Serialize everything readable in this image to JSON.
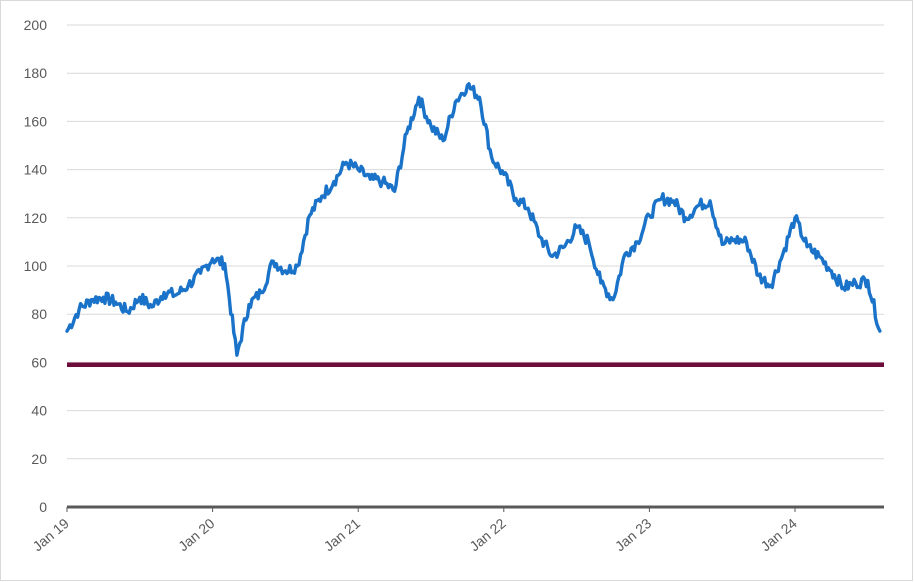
{
  "chart_data": {
    "type": "line",
    "title": "",
    "xlabel": "",
    "ylabel": "",
    "ylim": [
      0,
      200
    ],
    "yticks": [
      0,
      20,
      40,
      60,
      80,
      100,
      120,
      140,
      160,
      180,
      200
    ],
    "ytick_labels": [
      "0",
      "20",
      "40",
      "60",
      "80",
      "100",
      "120",
      "140",
      "160",
      "180",
      "200"
    ],
    "xlim": [
      "2019-01",
      "2024-08"
    ],
    "xticks": [
      "2019-01",
      "2020-01",
      "2021-01",
      "2022-01",
      "2023-01",
      "2024-01"
    ],
    "xtick_labels": [
      "Jan 19",
      "Jan 20",
      "Jan 21",
      "Jan 22",
      "Jan 23",
      "Jan 24"
    ],
    "grid": true,
    "legend": "none",
    "series": [
      {
        "color": "#1a73c8",
        "x": [
          "2019-01",
          "2019-02",
          "2019-03",
          "2019-04",
          "2019-05",
          "2019-06",
          "2019-07",
          "2019-08",
          "2019-09",
          "2019-10",
          "2019-11",
          "2019-12",
          "2020-01",
          "2020-02",
          "2020-03",
          "2020-04",
          "2020-05",
          "2020-06",
          "2020-07",
          "2020-08",
          "2020-09",
          "2020-10",
          "2020-11",
          "2020-12",
          "2021-01",
          "2021-02",
          "2021-03",
          "2021-04",
          "2021-05",
          "2021-06",
          "2021-07",
          "2021-08",
          "2021-09",
          "2021-10",
          "2021-11",
          "2021-12",
          "2022-01",
          "2022-02",
          "2022-03",
          "2022-04",
          "2022-05",
          "2022-06",
          "2022-07",
          "2022-08",
          "2022-09",
          "2022-10",
          "2022-11",
          "2022-12",
          "2023-01",
          "2023-02",
          "2023-03",
          "2023-04",
          "2023-05",
          "2023-06",
          "2023-07",
          "2023-08",
          "2023-09",
          "2023-10",
          "2023-11",
          "2023-12",
          "2024-01",
          "2024-02",
          "2024-03",
          "2024-04",
          "2024-05",
          "2024-06",
          "2024-07",
          "2024-08"
        ],
        "values": [
          73,
          82,
          86,
          87,
          85,
          81,
          87,
          83,
          89,
          88,
          92,
          97,
          103,
          101,
          63,
          84,
          89,
          102,
          98,
          100,
          121,
          129,
          135,
          143,
          140,
          136,
          135,
          131,
          155,
          170,
          158,
          152,
          168,
          175,
          170,
          145,
          138,
          128,
          124,
          112,
          104,
          108,
          116,
          110,
          93,
          86,
          105,
          110,
          121,
          128,
          127,
          120,
          125,
          127,
          109,
          111,
          110,
          96,
          92,
          105,
          120,
          108,
          104,
          98,
          91,
          93,
          94,
          73
        ]
      }
    ],
    "reference_lines": [
      {
        "y": 59,
        "color": "#6d0c3a"
      }
    ]
  }
}
